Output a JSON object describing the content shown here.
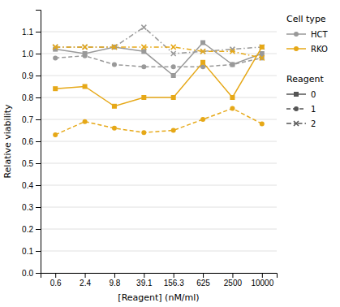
{
  "chart_data": {
    "type": "line",
    "xlabel": "[Reagent] (nM/ml)",
    "ylabel": "Relative viability",
    "categories": [
      "0.6",
      "2.4",
      "9.8",
      "39.1",
      "156.3",
      "625",
      "2500",
      "10000"
    ],
    "series": [
      {
        "color": "#999999",
        "marker": "x",
        "line_style": "dashdot",
        "values": [
          1.03,
          1.03,
          1.03,
          1.12,
          1.0,
          1.01,
          1.02,
          1.03
        ]
      },
      {
        "color": "#999999",
        "marker": "circle",
        "line_style": "dashed",
        "values": [
          0.98,
          0.99,
          0.95,
          0.94,
          0.94,
          0.94,
          0.95,
          0.98
        ]
      },
      {
        "color": "#999999",
        "marker": "square",
        "line_style": "solid",
        "values": [
          1.02,
          1.0,
          1.03,
          1.01,
          0.9,
          1.05,
          0.95,
          1.0
        ]
      },
      {
        "color": "#E6A817",
        "marker": "x",
        "line_style": "dashdot",
        "values": [
          1.03,
          1.03,
          1.03,
          1.03,
          1.03,
          1.01,
          1.01,
          0.98
        ]
      },
      {
        "color": "#E6A817",
        "marker": "circle",
        "line_style": "dashed",
        "values": [
          0.63,
          0.69,
          0.66,
          0.64,
          0.65,
          0.7,
          0.75,
          0.68
        ]
      },
      {
        "color": "#E6A817",
        "marker": "square",
        "line_style": "solid",
        "values": [
          0.84,
          0.85,
          0.76,
          0.8,
          0.8,
          0.96,
          0.8,
          1.03
        ]
      }
    ],
    "ylim": [
      0.0,
      1.2
    ],
    "yticks": [
      {
        "value": 0.0,
        "label": "0.0"
      },
      0.1,
      0.2,
      0.3,
      0.4,
      0.5,
      0.6,
      0.7,
      0.8,
      0.9,
      {
        "value": 1.0,
        "label": "1.0"
      },
      1.1
    ],
    "grid": true,
    "legends": [
      {
        "title": "Cell type",
        "entries": [
          {
            "label": "HCT",
            "color": "#999999",
            "marker": "circle",
            "line_style": "solid"
          },
          {
            "label": "RKO",
            "color": "#E6A817",
            "marker": "circle",
            "line_style": "solid"
          }
        ]
      },
      {
        "title": "Reagent",
        "entries": [
          {
            "label": "0",
            "color": "#555555",
            "marker": "square",
            "line_style": "solid"
          },
          {
            "label": "1",
            "color": "#555555",
            "marker": "circle",
            "line_style": "dashed"
          },
          {
            "label": "2",
            "color": "#555555",
            "marker": "x",
            "line_style": "dashdot"
          }
        ]
      }
    ]
  }
}
